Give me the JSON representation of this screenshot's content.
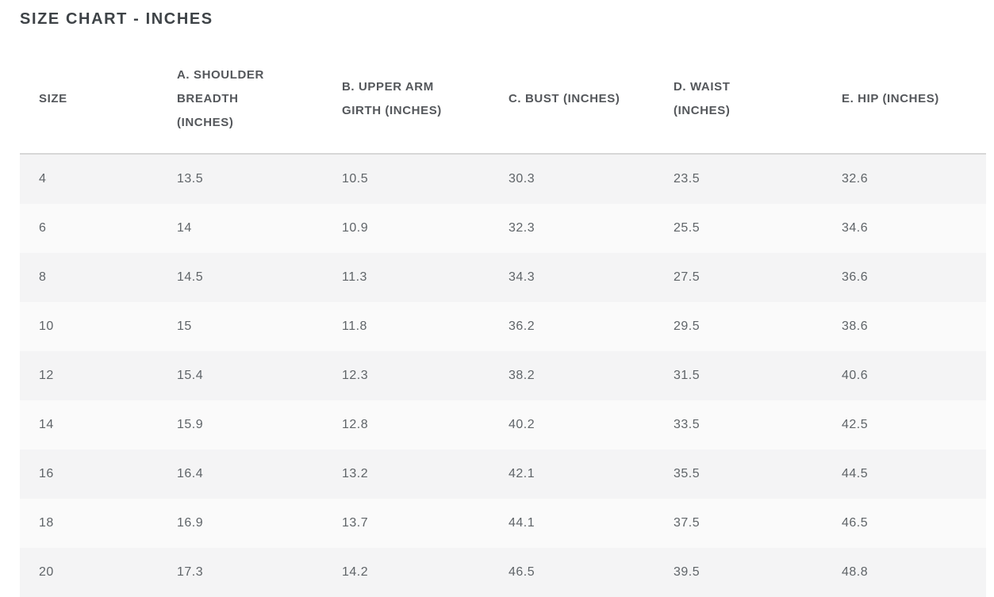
{
  "title": "SIZE CHART - INCHES",
  "table": {
    "columns": [
      {
        "key": "size",
        "label": "SIZE"
      },
      {
        "key": "shoulder",
        "label": "A. SHOULDER BREADTH (INCHES)"
      },
      {
        "key": "upper-arm",
        "label": "B. UPPER ARM GIRTH (INCHES)"
      },
      {
        "key": "bust",
        "label": "C. BUST (INCHES)"
      },
      {
        "key": "waist",
        "label": "D. WAIST (INCHES)"
      },
      {
        "key": "hip",
        "label": "E. HIP (INCHES)"
      }
    ],
    "rows": [
      [
        "4",
        "13.5",
        "10.5",
        "30.3",
        "23.5",
        "32.6"
      ],
      [
        "6",
        "14",
        "10.9",
        "32.3",
        "25.5",
        "34.6"
      ],
      [
        "8",
        "14.5",
        "11.3",
        "34.3",
        "27.5",
        "36.6"
      ],
      [
        "10",
        "15",
        "11.8",
        "36.2",
        "29.5",
        "38.6"
      ],
      [
        "12",
        "15.4",
        "12.3",
        "38.2",
        "31.5",
        "40.6"
      ],
      [
        "14",
        "15.9",
        "12.8",
        "40.2",
        "33.5",
        "42.5"
      ],
      [
        "16",
        "16.4",
        "13.2",
        "42.1",
        "35.5",
        "44.5"
      ],
      [
        "18",
        "16.9",
        "13.7",
        "44.1",
        "37.5",
        "46.5"
      ],
      [
        "20",
        "17.3",
        "14.2",
        "46.5",
        "39.5",
        "48.8"
      ]
    ]
  },
  "colors": {
    "title_text": "#3e4347",
    "header_text": "#54575b",
    "cell_text": "#5f6468",
    "header_border": "#d7d7d7",
    "row_stripe": "#f4f4f5",
    "row_base": "#fafafa",
    "page_background": "#ffffff"
  },
  "chart_data": {
    "type": "table",
    "title": "SIZE CHART - INCHES",
    "columns": [
      "SIZE",
      "A. SHOULDER BREADTH (INCHES)",
      "B. UPPER ARM GIRTH (INCHES)",
      "C. BUST (INCHES)",
      "D. WAIST (INCHES)",
      "E. HIP (INCHES)"
    ],
    "rows": [
      [
        4,
        13.5,
        10.5,
        30.3,
        23.5,
        32.6
      ],
      [
        6,
        14,
        10.9,
        32.3,
        25.5,
        34.6
      ],
      [
        8,
        14.5,
        11.3,
        34.3,
        27.5,
        36.6
      ],
      [
        10,
        15,
        11.8,
        36.2,
        29.5,
        38.6
      ],
      [
        12,
        15.4,
        12.3,
        38.2,
        31.5,
        40.6
      ],
      [
        14,
        15.9,
        12.8,
        40.2,
        33.5,
        42.5
      ],
      [
        16,
        16.4,
        13.2,
        42.1,
        35.5,
        44.5
      ],
      [
        18,
        16.9,
        13.7,
        44.1,
        37.5,
        46.5
      ],
      [
        20,
        17.3,
        14.2,
        46.5,
        39.5,
        48.8
      ]
    ]
  }
}
